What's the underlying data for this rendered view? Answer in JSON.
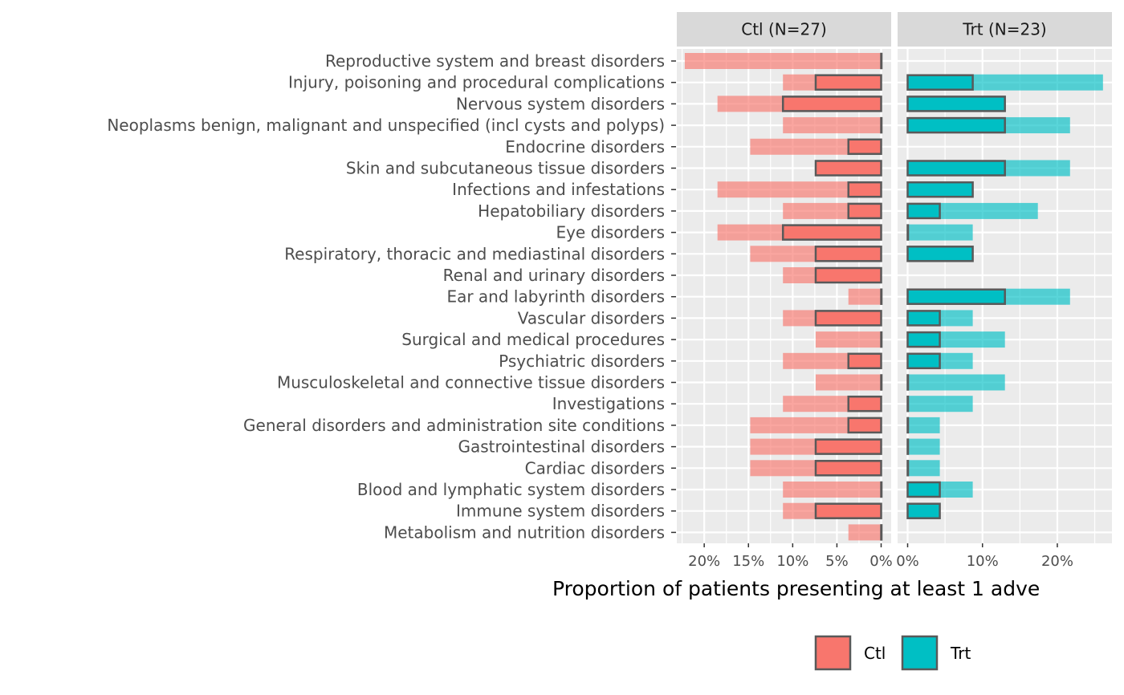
{
  "chart_data": {
    "type": "bar",
    "orientation": "horizontal",
    "xlabel": "Proportion of patients presenting at least 1 adve",
    "ylabel": "",
    "grid": true,
    "legend_position": "bottom",
    "categories": [
      "Reproductive system and breast disorders",
      "Injury, poisoning and procedural complications",
      "Nervous system disorders",
      "Neoplasms benign, malignant and unspecified (incl cysts and polyps)",
      "Endocrine disorders",
      "Skin and subcutaneous tissue disorders",
      "Infections and infestations",
      "Hepatobiliary disorders",
      "Eye disorders",
      "Respiratory, thoracic and mediastinal disorders",
      "Renal and urinary disorders",
      "Ear and labyrinth disorders",
      "Vascular disorders",
      "Surgical and medical procedures",
      "Psychiatric disorders",
      "Musculoskeletal and connective tissue disorders",
      "Investigations",
      "General disorders and administration site conditions",
      "Gastrointestinal disorders",
      "Cardiac disorders",
      "Blood and lymphatic system disorders",
      "Immune system disorders",
      "Metabolism and nutrition disorders"
    ],
    "panels": [
      {
        "strip": "Ctl (N=27)",
        "reversed": true,
        "xlim": [
          0,
          0.231
        ],
        "ticks": [
          0.2,
          0.15,
          0.1,
          0.05,
          0
        ],
        "tick_labels": [
          "20%",
          "15%",
          "10%",
          "5%",
          "0%"
        ],
        "color": "#F8766D",
        "bar_values": [
          0.222,
          0.111,
          0.185,
          0.111,
          0.148,
          0.074,
          0.185,
          0.111,
          0.185,
          0.148,
          0.111,
          0.037,
          0.111,
          0.074,
          0.111,
          0.074,
          0.111,
          0.148,
          0.148,
          0.148,
          0.111,
          0.111,
          0.037
        ],
        "box_values": [
          0,
          0.074,
          0.111,
          0,
          0.037,
          0.074,
          0.037,
          0.037,
          0.111,
          0.074,
          0.074,
          0,
          0.074,
          0,
          0.037,
          0,
          0.037,
          0.037,
          0.074,
          0.074,
          0,
          0.074,
          0
        ]
      },
      {
        "strip": "Trt (N=23)",
        "reversed": false,
        "xlim": [
          0,
          0.273
        ],
        "ticks": [
          0,
          0.1,
          0.2
        ],
        "tick_labels": [
          "0%",
          "10%",
          "20%"
        ],
        "color": "#00BFC4",
        "bar_values": [
          null,
          0.261,
          0.13,
          0.217,
          null,
          0.217,
          0.087,
          0.174,
          0.087,
          0.087,
          null,
          0.217,
          0.087,
          0.13,
          0.087,
          0.13,
          0.087,
          0.043,
          0.043,
          0.043,
          0.087,
          0.043,
          null
        ],
        "box_values": [
          null,
          0.087,
          0.13,
          0.13,
          null,
          0.13,
          0.087,
          0.043,
          0,
          0.087,
          null,
          0.13,
          0.043,
          0.043,
          0.043,
          0,
          0,
          0,
          0,
          0,
          0.043,
          0.043,
          null
        ]
      }
    ],
    "legend": [
      {
        "label": "Ctl",
        "color": "#F8766D"
      },
      {
        "label": "Trt",
        "color": "#00BFC4"
      }
    ]
  }
}
